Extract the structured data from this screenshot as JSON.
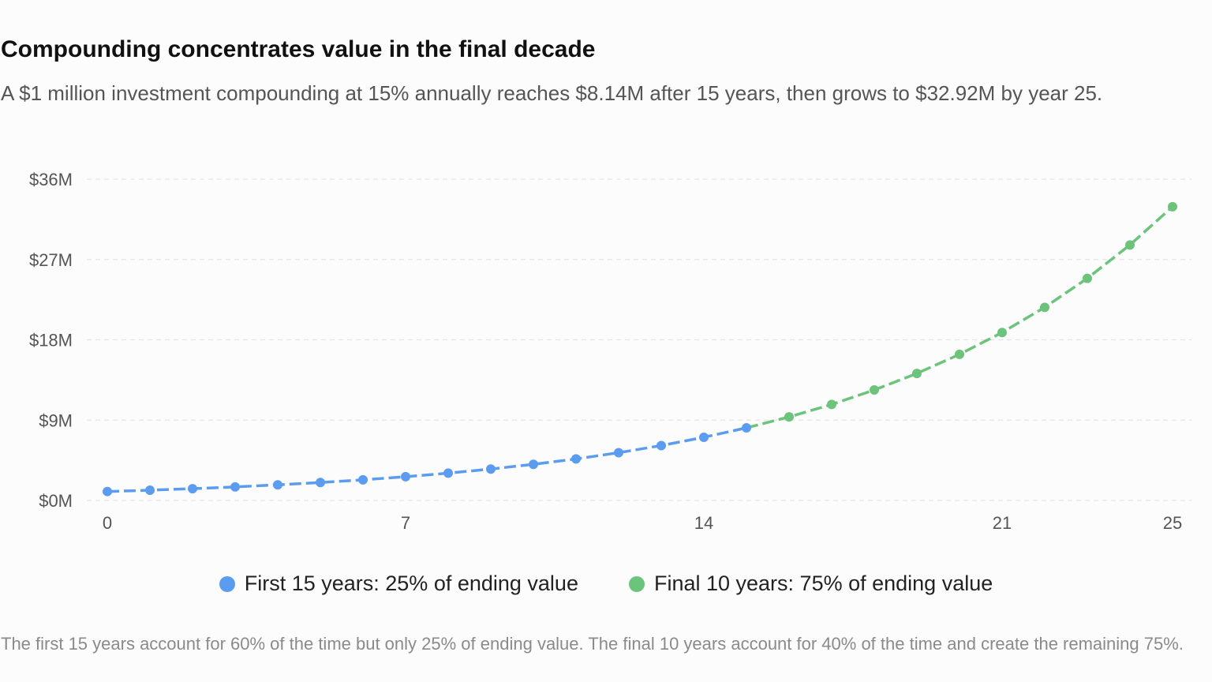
{
  "header": {
    "title": "Compounding concentrates value in the final decade",
    "subtitle": "A $1 million investment compounding at 15% annually reaches $8.14M after 15 years, then grows to $32.92M by year 25."
  },
  "footnote": "The first 15 years account for 60% of the time but only 25% of ending value. The final 10 years account for 40% of the time and create the remaining 75%.",
  "colors": {
    "first": "#5b9cf0",
    "final": "#6cc47c",
    "grid": "#e4e4e4"
  },
  "chart_data": {
    "type": "line",
    "x": [
      0,
      1,
      2,
      3,
      4,
      5,
      6,
      7,
      8,
      9,
      10,
      11,
      12,
      13,
      14,
      15,
      16,
      17,
      18,
      19,
      20,
      21,
      22,
      23,
      24,
      25
    ],
    "series": [
      {
        "name": "First 15 years: 25% of ending value",
        "color": "#5b9cf0",
        "x": [
          0,
          1,
          2,
          3,
          4,
          5,
          6,
          7,
          8,
          9,
          10,
          11,
          12,
          13,
          14,
          15
        ],
        "values": [
          1.0,
          1.15,
          1.32,
          1.52,
          1.75,
          2.01,
          2.31,
          2.66,
          3.06,
          3.52,
          4.05,
          4.65,
          5.35,
          6.15,
          7.08,
          8.14
        ]
      },
      {
        "name": "Final 10 years: 75% of ending value",
        "color": "#6cc47c",
        "x": [
          15,
          16,
          17,
          18,
          19,
          20,
          21,
          22,
          23,
          24,
          25
        ],
        "values": [
          8.14,
          9.36,
          10.76,
          12.38,
          14.23,
          16.37,
          18.82,
          21.64,
          24.89,
          28.63,
          32.92
        ]
      }
    ],
    "xticks": [
      {
        "value": 0,
        "label": "0"
      },
      {
        "value": 7,
        "label": "7"
      },
      {
        "value": 14,
        "label": "14"
      },
      {
        "value": 21,
        "label": "21"
      },
      {
        "value": 25,
        "label": "25"
      }
    ],
    "yticks": [
      {
        "value": 0,
        "label": "$0M"
      },
      {
        "value": 9,
        "label": "$9M"
      },
      {
        "value": 18,
        "label": "$18M"
      },
      {
        "value": 27,
        "label": "$27M"
      },
      {
        "value": 36,
        "label": "$36M"
      }
    ],
    "xlim": [
      0,
      25
    ],
    "ylim": [
      0,
      36
    ],
    "grid": true,
    "legend": "bottom"
  }
}
